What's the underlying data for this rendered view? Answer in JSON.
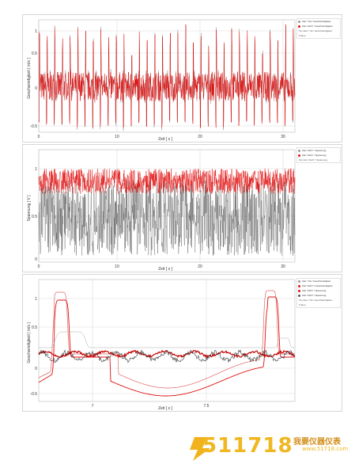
{
  "panels": [
    {
      "id": "panel1",
      "ylabel": "Geschwindigkeit [ m/s ]",
      "xlabel": "Zeit [ s ]",
      "x_ticks": [
        "0",
        "10",
        "20",
        "30"
      ],
      "y_ticks": [
        "1",
        "0.5",
        "0",
        "-0.5"
      ],
      "legend": [
        {
          "label": "Zeit / Ytk / Geschwindigkeit",
          "color": "#9a9a9a",
          "kind": "dot"
        },
        {
          "label": "Zeit / RefY / Geschwindigkeit",
          "color": "#e01010",
          "kind": "dot"
        },
        {
          "label": "Ory Zeit / Ytk / Geschwindigkeit",
          "color": "",
          "kind": "plain"
        },
        {
          "label": "Frame",
          "color": "",
          "kind": "plain"
        }
      ]
    },
    {
      "id": "panel2",
      "ylabel": "Spannung [ V ]",
      "xlabel": "Zeit [ s ]",
      "x_ticks": [
        "0",
        "10",
        "20",
        "30"
      ],
      "y_ticks": [
        "1",
        "0.5",
        "0"
      ],
      "legend": [
        {
          "label": "Zeit / RefY / Spannung",
          "color": "#9a9a9a",
          "kind": "dot"
        },
        {
          "label": "Zeit / RefY / Spannung",
          "color": "#e01010",
          "kind": "dot"
        },
        {
          "label": "Ory Zeit / RefY / Spannung",
          "color": "",
          "kind": "plain"
        }
      ]
    },
    {
      "id": "panel3",
      "ylabel": "Geschwindigkeit [ m/s ]",
      "xlabel": "Zeit [ s ]",
      "x_ticks": [
        "7",
        "7.5"
      ],
      "y_ticks": [
        "1",
        "0.5",
        "0",
        "-0.5"
      ],
      "legend": [
        {
          "label": "Zeit / Ytk / Geschwindigkeit",
          "color": "#9a9a9a",
          "kind": "dot"
        },
        {
          "label": "Zeit / RefY / Geschwindigkeit",
          "color": "#e01010",
          "kind": "dot"
        },
        {
          "label": "Zeit / RefY / Spannung",
          "color": "#e01010",
          "kind": "dot"
        },
        {
          "label": "Zeit / RefY / Spannung",
          "color": "#555555",
          "kind": "dot"
        },
        {
          "label": "Ory Zeit / Ytk / Geschwindigkeit",
          "color": "",
          "kind": "plain"
        },
        {
          "label": "Frame",
          "color": "",
          "kind": "plain"
        }
      ]
    }
  ],
  "colors": {
    "red": "#e01010",
    "gray": "#8a8a8a",
    "dark": "#333333",
    "grid": "#dddddd"
  },
  "watermark": {
    "number": "511718",
    "chinese": "我要仪器仪表",
    "url": "www.51718.com"
  }
}
